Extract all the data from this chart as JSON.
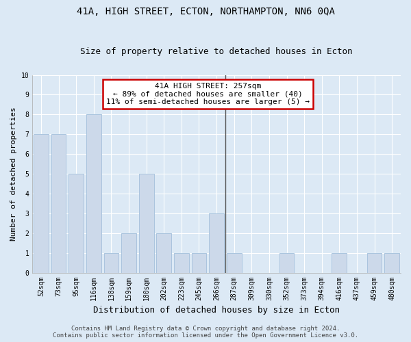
{
  "title": "41A, HIGH STREET, ECTON, NORTHAMPTON, NN6 0QA",
  "subtitle": "Size of property relative to detached houses in Ecton",
  "xlabel": "Distribution of detached houses by size in Ecton",
  "ylabel": "Number of detached properties",
  "categories": [
    "52sqm",
    "73sqm",
    "95sqm",
    "116sqm",
    "138sqm",
    "159sqm",
    "180sqm",
    "202sqm",
    "223sqm",
    "245sqm",
    "266sqm",
    "287sqm",
    "309sqm",
    "330sqm",
    "352sqm",
    "373sqm",
    "394sqm",
    "416sqm",
    "437sqm",
    "459sqm",
    "480sqm"
  ],
  "values": [
    7,
    7,
    5,
    8,
    1,
    2,
    5,
    2,
    1,
    1,
    3,
    1,
    0,
    0,
    1,
    0,
    0,
    1,
    0,
    1,
    1
  ],
  "vline_pos": 10.5,
  "bar_color": "#ccd9ea",
  "bar_edge_color": "#aac4de",
  "background_color": "#dce9f5",
  "annotation_text": "41A HIGH STREET: 257sqm\n← 89% of detached houses are smaller (40)\n11% of semi-detached houses are larger (5) →",
  "annotation_box_color": "#ffffff",
  "annotation_box_edge": "#cc0000",
  "ylim": [
    0,
    10
  ],
  "yticks": [
    0,
    1,
    2,
    3,
    4,
    5,
    6,
    7,
    8,
    9,
    10
  ],
  "footer_line1": "Contains HM Land Registry data © Crown copyright and database right 2024.",
  "footer_line2": "Contains public sector information licensed under the Open Government Licence v3.0.",
  "title_fontsize": 10,
  "subtitle_fontsize": 9,
  "xlabel_fontsize": 9,
  "ylabel_fontsize": 8,
  "tick_fontsize": 7,
  "annotation_fontsize": 8,
  "footer_fontsize": 6.5
}
